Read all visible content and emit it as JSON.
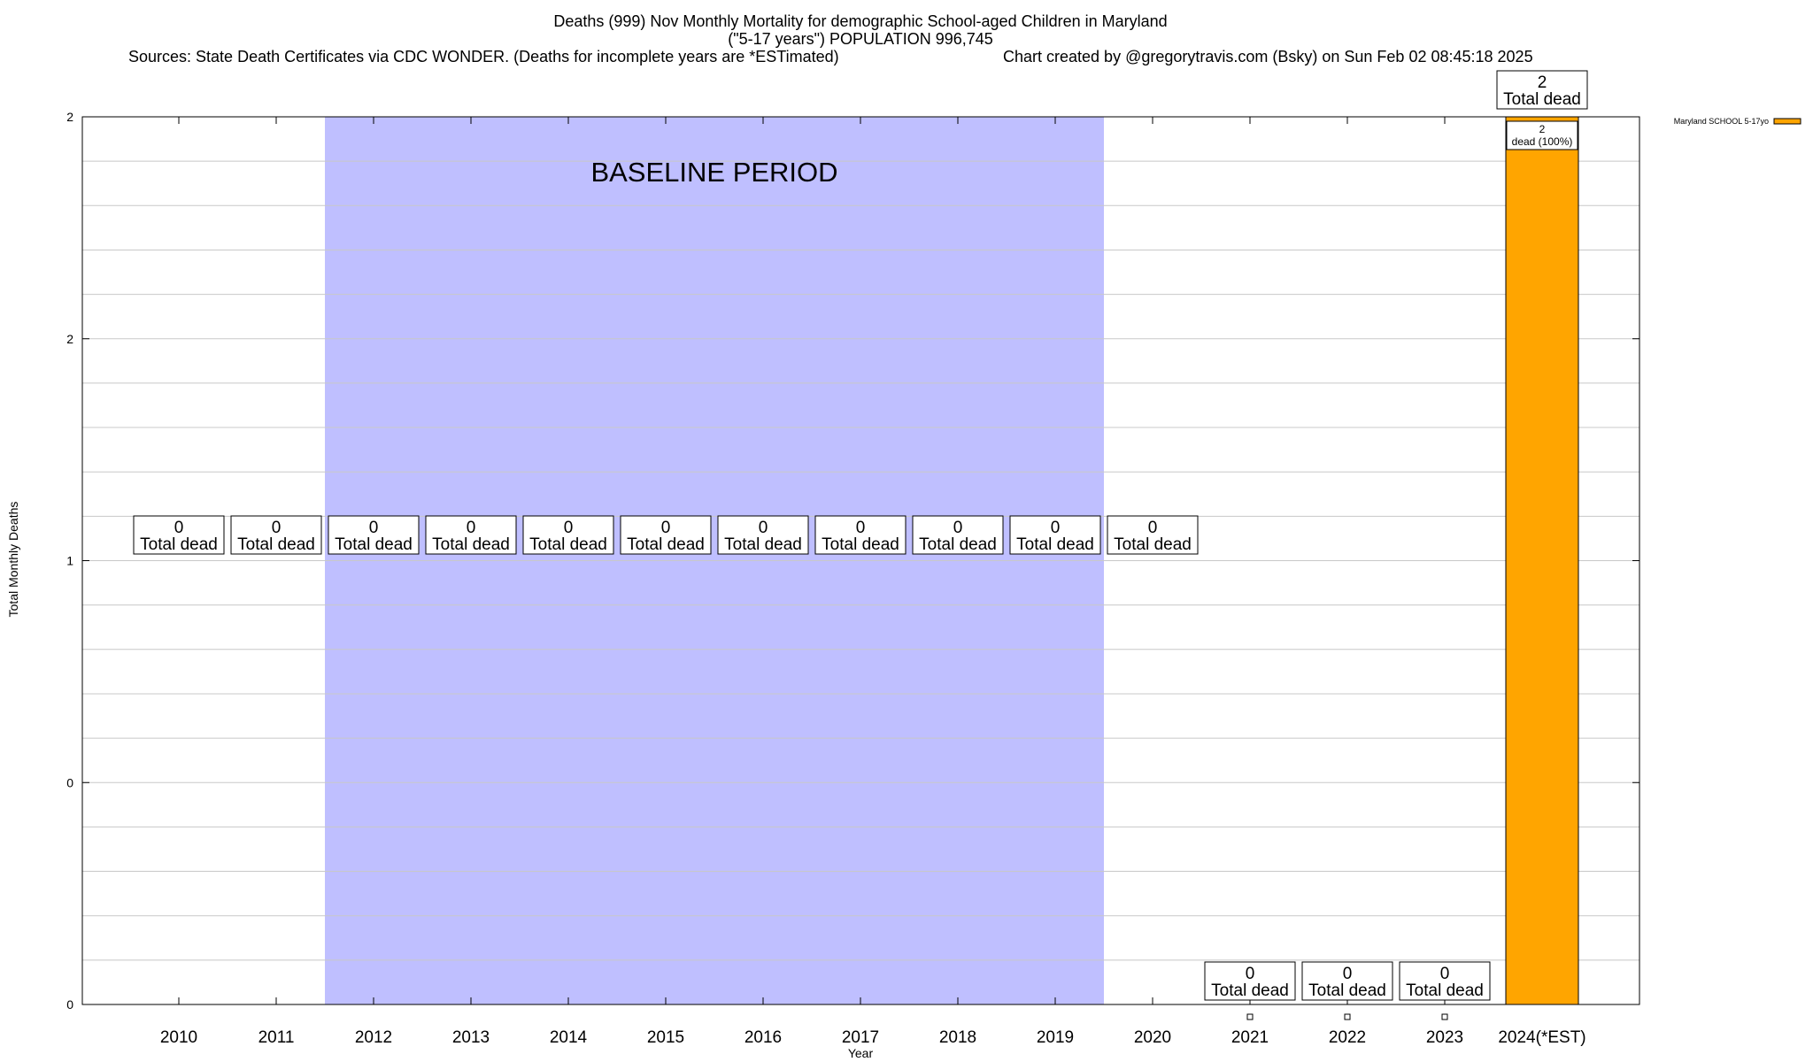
{
  "title": {
    "line1": "Deaths (999) Nov Monthly Mortality for demographic School-aged Children in Maryland",
    "line2": "(\"5-17 years\") POPULATION 996,745",
    "sources": "Sources: State Death Certificates via CDC WONDER. (Deaths for incomplete years are *ESTimated)",
    "credit": "Chart created by @gregorytravis.com (Bsky) on Sun Feb 02 08:45:18 2025"
  },
  "chart_data": {
    "type": "bar",
    "categories": [
      "2010",
      "2011",
      "2012",
      "2013",
      "2014",
      "2015",
      "2016",
      "2017",
      "2018",
      "2019",
      "2020",
      "2021",
      "2022",
      "2023",
      "2024(*EST)"
    ],
    "series": [
      {
        "name": "Maryland SCHOOL 5-17yo",
        "values": [
          0,
          0,
          0,
          0,
          0,
          0,
          0,
          0,
          0,
          0,
          0,
          0,
          0,
          0,
          2
        ],
        "color": "#ffa500"
      }
    ],
    "xlabel": "Year",
    "ylabel": "Total Monthly Deaths",
    "ylim": [
      0,
      2
    ],
    "y_tick_labels": [
      "0",
      "0",
      "1",
      "2",
      "2"
    ],
    "total_labels": [
      "0",
      "0",
      "0",
      "0",
      "0",
      "0",
      "0",
      "0",
      "0",
      "0",
      "0",
      "0",
      "0",
      "0",
      "2"
    ],
    "total_suffix": "Total dead",
    "inner_labels": [
      {
        "category": "2024(*EST)",
        "value": "2",
        "text": "dead (100%)"
      }
    ],
    "baseline_period": {
      "label": "BASELINE PERIOD",
      "from": "2012",
      "to": "2019",
      "color": "#bfbfff"
    },
    "grid": true,
    "legend_position": "right"
  }
}
